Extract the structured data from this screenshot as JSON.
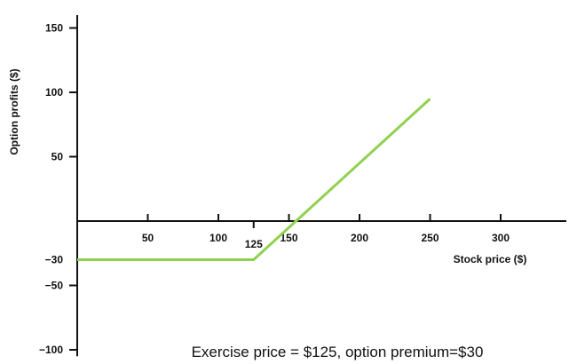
{
  "chart_data": {
    "type": "line",
    "xlabel": "Stock price ($)",
    "ylabel": "Option profits ($)",
    "caption": "Exercise price = $125, option premium=$30",
    "xlim": [
      0,
      350
    ],
    "ylim": [
      -105,
      160
    ],
    "x_ticks": [
      {
        "value": 50,
        "label": "50"
      },
      {
        "value": 100,
        "label": "100"
      },
      {
        "value": 125,
        "label": "125"
      },
      {
        "value": 150,
        "label": "150"
      },
      {
        "value": 200,
        "label": "200"
      },
      {
        "value": 250,
        "label": "250"
      },
      {
        "value": 300,
        "label": "300"
      }
    ],
    "y_ticks": [
      {
        "value": 150,
        "label": "150"
      },
      {
        "value": 100,
        "label": "100"
      },
      {
        "value": 50,
        "label": "50"
      },
      {
        "value": -30,
        "label": "−30"
      },
      {
        "value": -50,
        "label": "−50"
      },
      {
        "value": -100,
        "label": "−100"
      }
    ],
    "series": [
      {
        "color": "#8fd14f",
        "x": [
          0,
          125,
          250
        ],
        "y": [
          -30,
          -30,
          95
        ]
      }
    ]
  }
}
